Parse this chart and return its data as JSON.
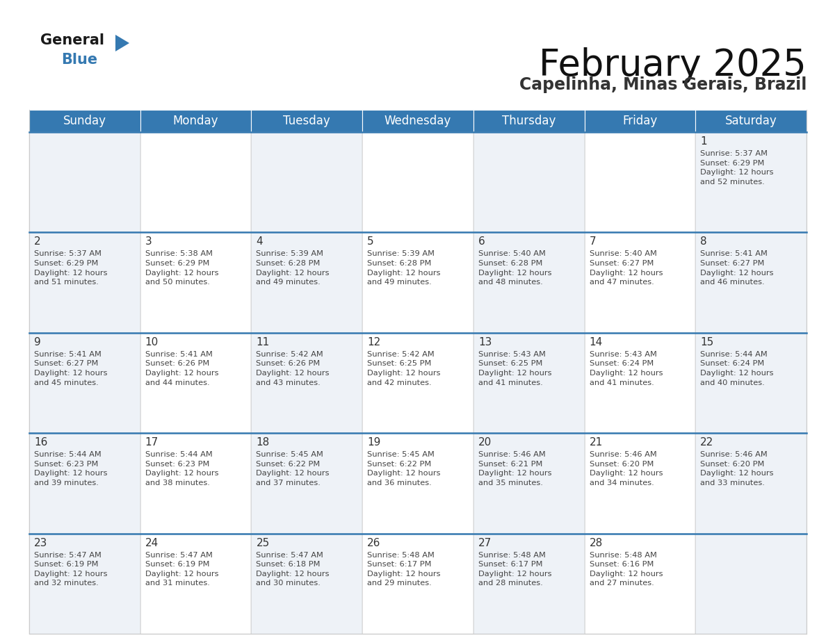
{
  "title": "February 2025",
  "subtitle": "Capelinha, Minas Gerais, Brazil",
  "header_color": "#3579b1",
  "header_text_color": "#ffffff",
  "cell_bg_alt": "#eef2f7",
  "cell_bg_white": "#ffffff",
  "border_color": "#3579b1",
  "cell_border_color": "#cccccc",
  "day_headers": [
    "Sunday",
    "Monday",
    "Tuesday",
    "Wednesday",
    "Thursday",
    "Friday",
    "Saturday"
  ],
  "title_fontsize": 38,
  "subtitle_fontsize": 17,
  "header_fontsize": 12,
  "day_number_fontsize": 11,
  "cell_text_fontsize": 8.2,
  "calendar_data": [
    [
      null,
      null,
      null,
      null,
      null,
      null,
      {
        "day": 1,
        "sunrise": "5:37 AM",
        "sunset": "6:29 PM",
        "daylight_hours": 12,
        "daylight_minutes": 52
      }
    ],
    [
      {
        "day": 2,
        "sunrise": "5:37 AM",
        "sunset": "6:29 PM",
        "daylight_hours": 12,
        "daylight_minutes": 51
      },
      {
        "day": 3,
        "sunrise": "5:38 AM",
        "sunset": "6:29 PM",
        "daylight_hours": 12,
        "daylight_minutes": 50
      },
      {
        "day": 4,
        "sunrise": "5:39 AM",
        "sunset": "6:28 PM",
        "daylight_hours": 12,
        "daylight_minutes": 49
      },
      {
        "day": 5,
        "sunrise": "5:39 AM",
        "sunset": "6:28 PM",
        "daylight_hours": 12,
        "daylight_minutes": 49
      },
      {
        "day": 6,
        "sunrise": "5:40 AM",
        "sunset": "6:28 PM",
        "daylight_hours": 12,
        "daylight_minutes": 48
      },
      {
        "day": 7,
        "sunrise": "5:40 AM",
        "sunset": "6:27 PM",
        "daylight_hours": 12,
        "daylight_minutes": 47
      },
      {
        "day": 8,
        "sunrise": "5:41 AM",
        "sunset": "6:27 PM",
        "daylight_hours": 12,
        "daylight_minutes": 46
      }
    ],
    [
      {
        "day": 9,
        "sunrise": "5:41 AM",
        "sunset": "6:27 PM",
        "daylight_hours": 12,
        "daylight_minutes": 45
      },
      {
        "day": 10,
        "sunrise": "5:41 AM",
        "sunset": "6:26 PM",
        "daylight_hours": 12,
        "daylight_minutes": 44
      },
      {
        "day": 11,
        "sunrise": "5:42 AM",
        "sunset": "6:26 PM",
        "daylight_hours": 12,
        "daylight_minutes": 43
      },
      {
        "day": 12,
        "sunrise": "5:42 AM",
        "sunset": "6:25 PM",
        "daylight_hours": 12,
        "daylight_minutes": 42
      },
      {
        "day": 13,
        "sunrise": "5:43 AM",
        "sunset": "6:25 PM",
        "daylight_hours": 12,
        "daylight_minutes": 41
      },
      {
        "day": 14,
        "sunrise": "5:43 AM",
        "sunset": "6:24 PM",
        "daylight_hours": 12,
        "daylight_minutes": 41
      },
      {
        "day": 15,
        "sunrise": "5:44 AM",
        "sunset": "6:24 PM",
        "daylight_hours": 12,
        "daylight_minutes": 40
      }
    ],
    [
      {
        "day": 16,
        "sunrise": "5:44 AM",
        "sunset": "6:23 PM",
        "daylight_hours": 12,
        "daylight_minutes": 39
      },
      {
        "day": 17,
        "sunrise": "5:44 AM",
        "sunset": "6:23 PM",
        "daylight_hours": 12,
        "daylight_minutes": 38
      },
      {
        "day": 18,
        "sunrise": "5:45 AM",
        "sunset": "6:22 PM",
        "daylight_hours": 12,
        "daylight_minutes": 37
      },
      {
        "day": 19,
        "sunrise": "5:45 AM",
        "sunset": "6:22 PM",
        "daylight_hours": 12,
        "daylight_minutes": 36
      },
      {
        "day": 20,
        "sunrise": "5:46 AM",
        "sunset": "6:21 PM",
        "daylight_hours": 12,
        "daylight_minutes": 35
      },
      {
        "day": 21,
        "sunrise": "5:46 AM",
        "sunset": "6:20 PM",
        "daylight_hours": 12,
        "daylight_minutes": 34
      },
      {
        "day": 22,
        "sunrise": "5:46 AM",
        "sunset": "6:20 PM",
        "daylight_hours": 12,
        "daylight_minutes": 33
      }
    ],
    [
      {
        "day": 23,
        "sunrise": "5:47 AM",
        "sunset": "6:19 PM",
        "daylight_hours": 12,
        "daylight_minutes": 32
      },
      {
        "day": 24,
        "sunrise": "5:47 AM",
        "sunset": "6:19 PM",
        "daylight_hours": 12,
        "daylight_minutes": 31
      },
      {
        "day": 25,
        "sunrise": "5:47 AM",
        "sunset": "6:18 PM",
        "daylight_hours": 12,
        "daylight_minutes": 30
      },
      {
        "day": 26,
        "sunrise": "5:48 AM",
        "sunset": "6:17 PM",
        "daylight_hours": 12,
        "daylight_minutes": 29
      },
      {
        "day": 27,
        "sunrise": "5:48 AM",
        "sunset": "6:17 PM",
        "daylight_hours": 12,
        "daylight_minutes": 28
      },
      {
        "day": 28,
        "sunrise": "5:48 AM",
        "sunset": "6:16 PM",
        "daylight_hours": 12,
        "daylight_minutes": 27
      },
      null
    ]
  ],
  "logo_text_general": "General",
  "logo_text_blue": "Blue",
  "logo_color_general": "#1a1a1a",
  "logo_color_blue": "#3579b1",
  "logo_triangle_color": "#3579b1"
}
